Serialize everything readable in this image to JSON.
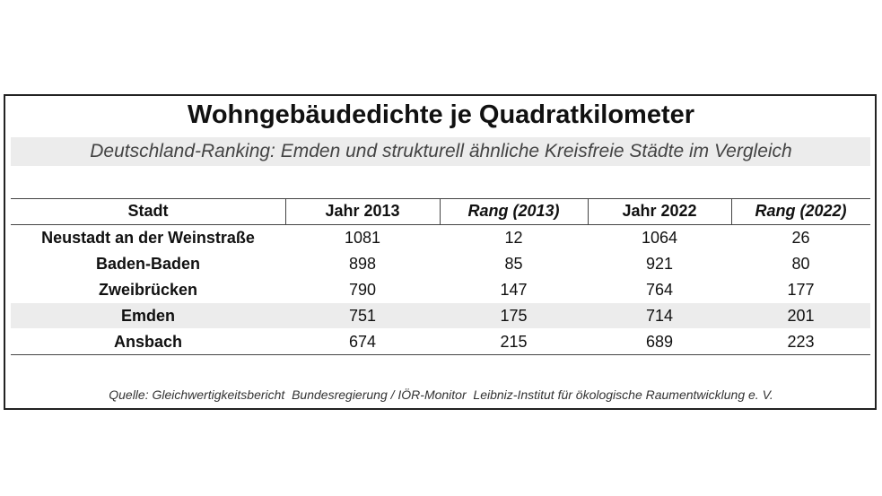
{
  "header": {
    "title": "Wohngebäudedichte je Quadratkilometer",
    "subtitle": "Deutschland-Ranking: Emden und strukturell ähnliche Kreisfreie Städte im Vergleich"
  },
  "table": {
    "columns": [
      "Stadt",
      "Jahr 2013",
      "Rang (2013)",
      "Jahr 2022",
      "Rang (2022)"
    ],
    "rows": [
      [
        "Neustadt an der Weinstraße",
        1081,
        12,
        1064,
        26
      ],
      [
        "Baden-Baden",
        898,
        85,
        921,
        80
      ],
      [
        "Zweibrücken",
        790,
        147,
        764,
        177
      ],
      [
        "Emden",
        751,
        175,
        714,
        201
      ],
      [
        "Ansbach",
        674,
        215,
        689,
        223
      ]
    ]
  },
  "source": "Quelle: Gleichwertigkeitsbericht  Bundesregierung / IÖR-Monitor  Leibniz-Institut für ökologische Raumentwicklung e. V."
}
